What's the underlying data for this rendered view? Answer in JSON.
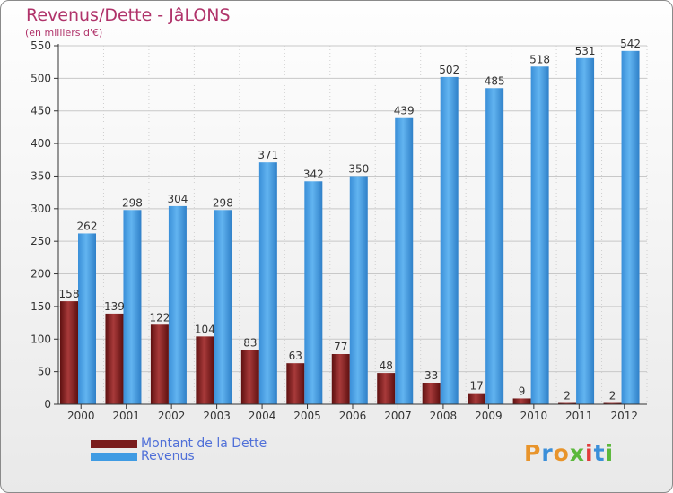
{
  "title": "Revenus/Dette - JâLONS",
  "subtitle": "(en milliers d'€)",
  "colors": {
    "debt": "#7a1c1c",
    "revenue": "#3f9be3",
    "title": "#b0336a",
    "legend_text": "#4f6fd8"
  },
  "legend": [
    {
      "label": "Montant de la Dette",
      "color": "#7a1c1c"
    },
    {
      "label": "Revenus",
      "color": "#3f9be3"
    }
  ],
  "logo": {
    "letters": [
      "P",
      "r",
      "o",
      "x",
      "i",
      "t",
      "i"
    ],
    "colors": [
      "#e8942b",
      "#3b8fd9",
      "#e8942b",
      "#5bb83c",
      "#e23b3b",
      "#3b8fd9",
      "#5bb83c"
    ]
  },
  "chart_data": {
    "type": "bar",
    "title": "Revenus/Dette - JâLONS",
    "ylabel": "(en milliers d'€)",
    "xlabel": "",
    "ylim": [
      0,
      550
    ],
    "yticks": [
      0,
      50,
      100,
      150,
      200,
      250,
      300,
      350,
      400,
      450,
      500,
      550
    ],
    "grid": true,
    "categories": [
      "2000",
      "2001",
      "2002",
      "2003",
      "2004",
      "2005",
      "2006",
      "2007",
      "2008",
      "2009",
      "2010",
      "2011",
      "2012"
    ],
    "series": [
      {
        "name": "Montant de la Dette",
        "values": [
          158,
          139,
          122,
          104,
          83,
          63,
          77,
          48,
          33,
          17,
          9,
          2,
          2
        ]
      },
      {
        "name": "Revenus",
        "values": [
          262,
          298,
          304,
          298,
          371,
          342,
          350,
          439,
          502,
          485,
          518,
          531,
          542
        ]
      }
    ]
  }
}
